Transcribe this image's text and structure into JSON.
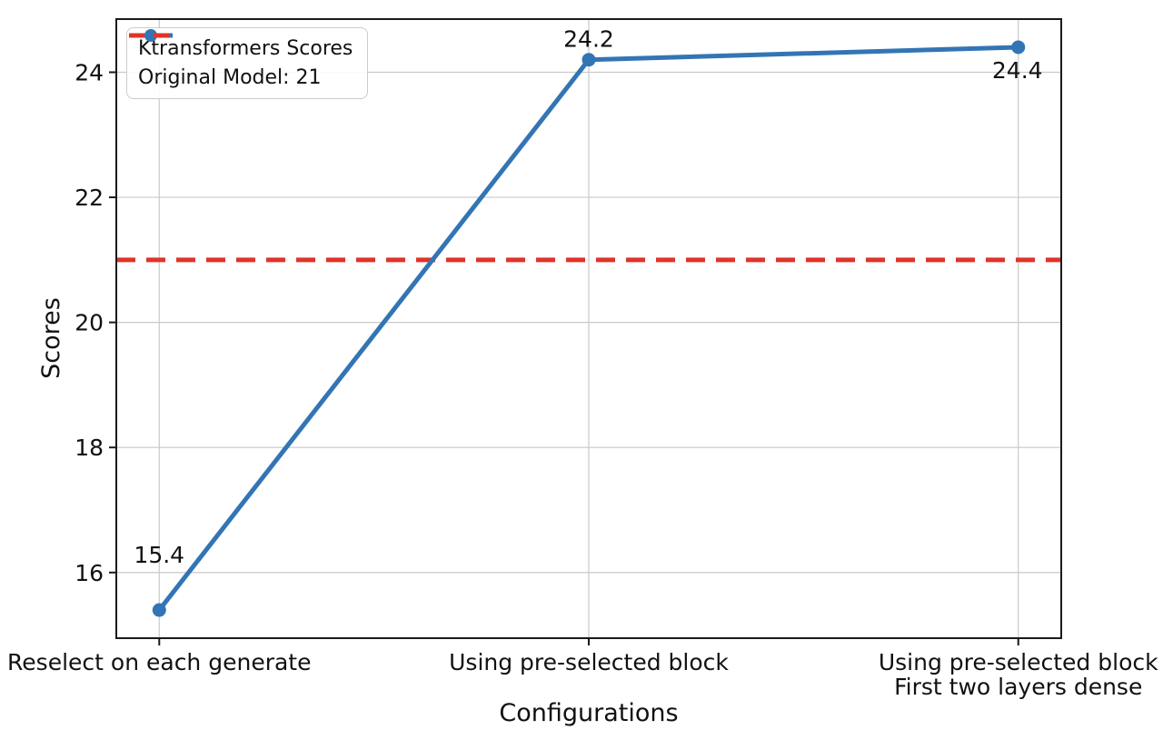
{
  "chart_data": {
    "type": "line",
    "title": "",
    "xlabel": "Configurations",
    "ylabel": "Scores",
    "categories": [
      "Reselect on each generate",
      "Using pre-selected block",
      "Using pre-selected block\nFirst two layers dense"
    ],
    "series": [
      {
        "name": "Ktransformers Scores",
        "values": [
          15.4,
          24.2,
          24.4
        ],
        "point_labels": [
          "15.4",
          "24.2",
          "24.4"
        ],
        "color": "#3375b4",
        "marker": "circle",
        "line_style": "solid"
      }
    ],
    "reference_line": {
      "name": "Original Model: 21",
      "value": 21,
      "color": "#e13328",
      "line_style": "dashed"
    },
    "yticks": [
      16,
      18,
      20,
      22,
      24
    ],
    "ylim": [
      14.95,
      24.85
    ],
    "xlim": [
      -0.1,
      2.1
    ],
    "grid": true,
    "legend_position": "upper-left",
    "colors": {
      "grid": "#c9c9c9",
      "spine": "#1a1a1a",
      "text": "#111111",
      "legend_border": "#cccccc"
    }
  }
}
